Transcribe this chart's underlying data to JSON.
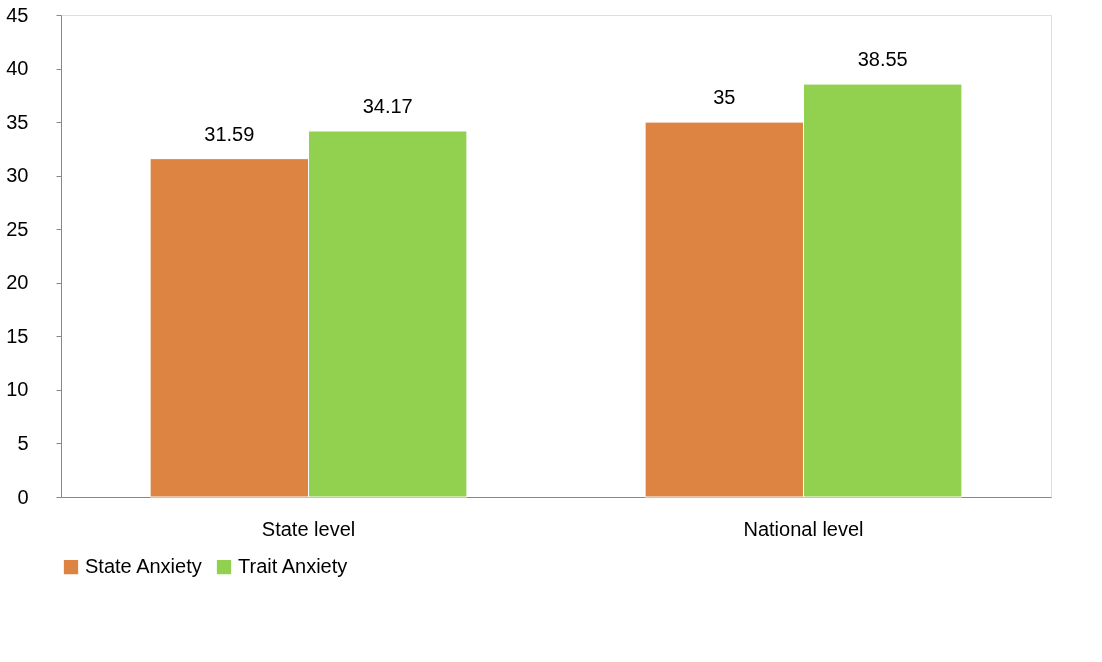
{
  "chart_data": {
    "type": "bar",
    "categories": [
      "State level",
      "National level"
    ],
    "series": [
      {
        "name": "State Anxiety",
        "color": "#dd8442",
        "values": [
          31.59,
          35
        ]
      },
      {
        "name": "Trait Anxiety",
        "color": "#92d050",
        "values": [
          34.17,
          38.55
        ]
      }
    ],
    "ylim": [
      0,
      45
    ],
    "yticks": [
      0,
      5,
      10,
      15,
      20,
      25,
      30,
      35,
      40,
      45
    ],
    "grid": false,
    "legend": "bottom",
    "data_labels": true
  }
}
